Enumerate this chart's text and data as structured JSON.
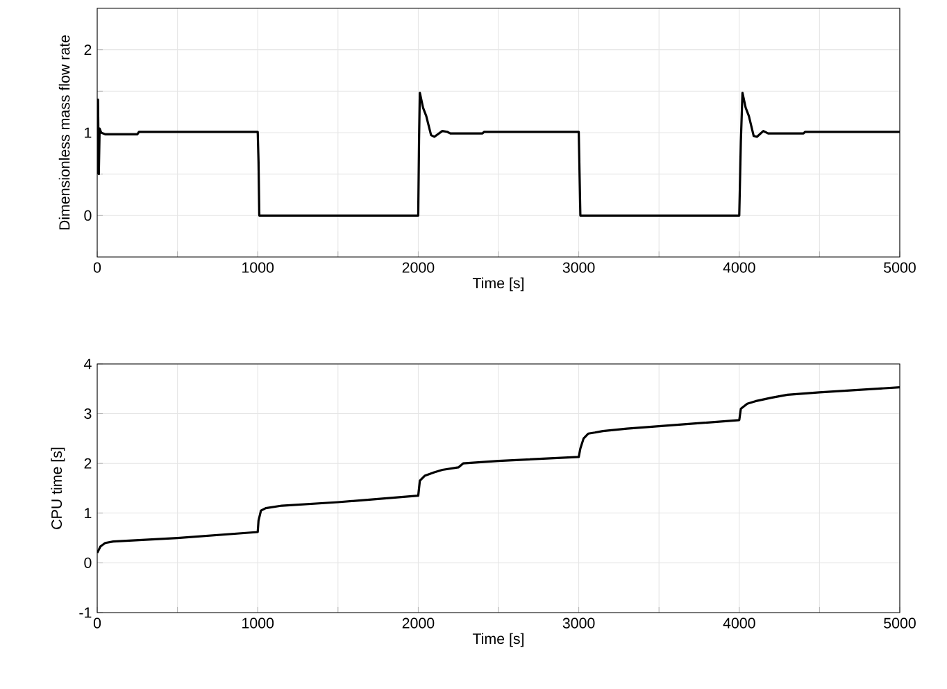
{
  "chart_data": [
    {
      "type": "line",
      "xlabel": "Time [s]",
      "ylabel": "Dimensionless mass flow rate",
      "xlim": [
        0,
        5000
      ],
      "ylim": [
        -0.5,
        2.5
      ],
      "xticks": [
        0,
        {
          "value": 500,
          "label": null
        },
        1000,
        {
          "value": 1500,
          "label": null
        },
        2000,
        {
          "value": 2500,
          "label": null
        },
        3000,
        {
          "value": 3500,
          "label": null
        },
        4000,
        {
          "value": 4500,
          "label": null
        },
        5000
      ],
      "yticks": [
        0,
        {
          "value": 0.5,
          "label": null
        },
        1,
        {
          "value": 1.5,
          "label": null
        },
        2
      ],
      "grid": true,
      "marker": "none",
      "line_style": "solid",
      "series": [
        {
          "color": "#000000",
          "x": [
            0,
            5,
            10,
            15,
            25,
            50,
            250,
            260,
            1000,
            1005,
            1010,
            2000,
            2005,
            2010,
            2030,
            2050,
            2080,
            2100,
            2150,
            2180,
            2200,
            2400,
            2410,
            3000,
            3010,
            4000,
            4010,
            4020,
            4040,
            4060,
            4090,
            4110,
            4150,
            4180,
            4400,
            4410,
            5000
          ],
          "values": [
            0.5,
            1.4,
            0.5,
            1.05,
            1.0,
            0.98,
            0.98,
            1.01,
            1.01,
            0.65,
            0,
            0,
            0.9,
            1.48,
            1.3,
            1.2,
            0.97,
            0.95,
            1.02,
            1.01,
            0.99,
            0.99,
            1.01,
            1.01,
            0,
            0,
            0.9,
            1.48,
            1.3,
            1.2,
            0.96,
            0.95,
            1.02,
            0.99,
            0.99,
            1.01,
            1.01
          ]
        }
      ]
    },
    {
      "type": "line",
      "xlabel": "Time [s]",
      "ylabel": "CPU time [s]",
      "xlim": [
        0,
        5000
      ],
      "ylim": [
        -1,
        4
      ],
      "xticks": [
        0,
        {
          "value": 500,
          "label": null
        },
        1000,
        {
          "value": 1500,
          "label": null
        },
        2000,
        {
          "value": 2500,
          "label": null
        },
        3000,
        {
          "value": 3500,
          "label": null
        },
        4000,
        {
          "value": 4500,
          "label": null
        },
        5000
      ],
      "yticks": [
        -1,
        0,
        1,
        2,
        3,
        4
      ],
      "grid": true,
      "marker": "none",
      "line_style": "solid",
      "series": [
        {
          "color": "#000000",
          "x": [
            0,
            20,
            50,
            100,
            500,
            1000,
            1005,
            1020,
            1050,
            1150,
            1500,
            2000,
            2010,
            2040,
            2100,
            2150,
            2250,
            2280,
            2500,
            3000,
            3010,
            3030,
            3060,
            3100,
            3150,
            3300,
            4000,
            4010,
            4050,
            4100,
            4200,
            4300,
            4500,
            5000
          ],
          "values": [
            0.2,
            0.33,
            0.4,
            0.43,
            0.5,
            0.62,
            0.85,
            1.05,
            1.1,
            1.15,
            1.22,
            1.35,
            1.65,
            1.75,
            1.82,
            1.87,
            1.92,
            2.0,
            2.05,
            2.13,
            2.3,
            2.5,
            2.6,
            2.62,
            2.65,
            2.7,
            2.87,
            3.1,
            3.2,
            3.25,
            3.32,
            3.38,
            3.43,
            3.53
          ]
        }
      ]
    }
  ]
}
